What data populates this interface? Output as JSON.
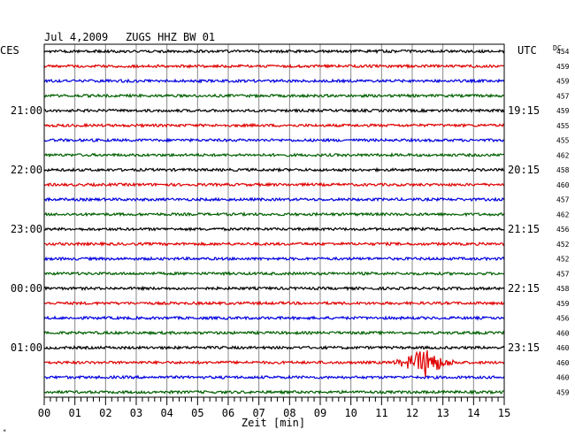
{
  "header": {
    "date": "Jul 4,2009",
    "station": "ZUGS HHZ BW 01",
    "left_tz": "CES",
    "right_tz": "UTC",
    "dc_label": "DC"
  },
  "chart_data": {
    "type": "line",
    "title": "Jul 4,2009   ZUGS HHZ BW 01",
    "xlabel": "Zeit [min]",
    "xlim": [
      0,
      15
    ],
    "x_ticks": [
      "00",
      "01",
      "02",
      "03",
      "04",
      "05",
      "06",
      "07",
      "08",
      "09",
      "10",
      "11",
      "12",
      "13",
      "14",
      "15"
    ],
    "left_time_labels": [
      {
        "trace": 4,
        "label": "21:00"
      },
      {
        "trace": 8,
        "label": "22:00"
      },
      {
        "trace": 12,
        "label": "23:00"
      },
      {
        "trace": 16,
        "label": "00:00"
      },
      {
        "trace": 20,
        "label": "01:00"
      }
    ],
    "right_time_labels": [
      {
        "trace": 4,
        "label": "19:15"
      },
      {
        "trace": 8,
        "label": "20:15"
      },
      {
        "trace": 12,
        "label": "21:15"
      },
      {
        "trace": 16,
        "label": "22:15"
      },
      {
        "trace": 20,
        "label": "23:15"
      }
    ],
    "trace_colors": [
      "#000000",
      "#e00000",
      "#0000e0",
      "#006000"
    ],
    "dc_values": [
      454,
      459,
      459,
      457,
      459,
      455,
      455,
      462,
      458,
      460,
      457,
      462,
      456,
      452,
      452,
      457,
      458,
      459,
      456,
      460,
      460,
      460,
      460,
      459
    ],
    "event": {
      "trace": 21,
      "start_min": 11.2,
      "peak_min": 12.55,
      "end_min": 13.6
    }
  }
}
